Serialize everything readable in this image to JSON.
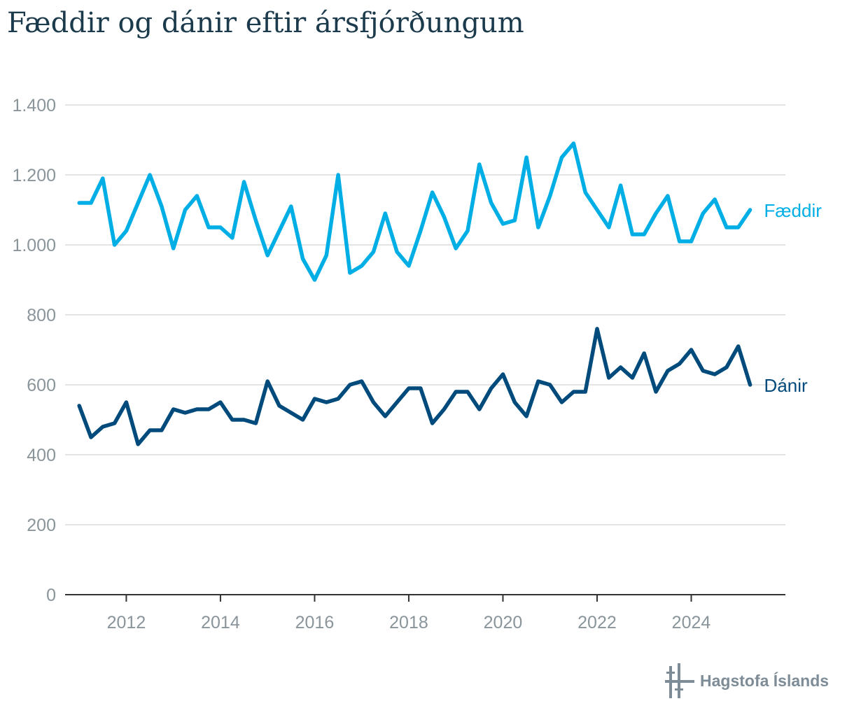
{
  "title": "Fæddir og dánir eftir ársfjórðungum",
  "brand": "Hagstofa Íslands",
  "colors": {
    "faeddir": "#00aee6",
    "danir": "#004b7c",
    "grid": "#dcdcdc",
    "tick": "#8a959b",
    "title": "#1b3a4b",
    "logo": "#7d8c96"
  },
  "chart_data": {
    "type": "line",
    "title": "Fæddir og dánir eftir ársfjórðungum",
    "x_start": 2011,
    "x_step": 0.25,
    "xticks": [
      "2012",
      "2014",
      "2016",
      "2018",
      "2020",
      "2022",
      "2024"
    ],
    "xtick_values": [
      2012,
      2014,
      2016,
      2018,
      2020,
      2022,
      2024
    ],
    "xlim": [
      2010.7,
      2026.0
    ],
    "ylim": [
      0,
      1400
    ],
    "yticks": [
      0,
      200,
      400,
      600,
      800,
      1000,
      1200,
      1400
    ],
    "ytick_labels": [
      "0",
      "200",
      "400",
      "600",
      "800",
      "1.000",
      "1.200",
      "1.400"
    ],
    "grid": true,
    "legend": "end-of-line labels",
    "series": [
      {
        "name": "Fæddir",
        "color": "#00aee6",
        "values": [
          1120,
          1120,
          1190,
          1000,
          1040,
          1120,
          1200,
          1110,
          990,
          1100,
          1140,
          1050,
          1050,
          1020,
          1180,
          1070,
          970,
          1040,
          1110,
          960,
          900,
          970,
          1200,
          920,
          940,
          980,
          1090,
          980,
          940,
          1040,
          1150,
          1080,
          990,
          1040,
          1230,
          1120,
          1060,
          1070,
          1250,
          1050,
          1140,
          1250,
          1290,
          1150,
          1100,
          1050,
          1170,
          1030,
          1030,
          1090,
          1140,
          1010,
          1010,
          1090,
          1130,
          1050,
          1050,
          1100
        ]
      },
      {
        "name": "Dánir",
        "color": "#004b7c",
        "values": [
          540,
          450,
          480,
          490,
          550,
          430,
          470,
          470,
          530,
          520,
          530,
          530,
          550,
          500,
          500,
          490,
          610,
          540,
          520,
          500,
          560,
          550,
          560,
          600,
          610,
          550,
          510,
          550,
          590,
          590,
          490,
          530,
          580,
          580,
          530,
          590,
          630,
          550,
          510,
          610,
          600,
          550,
          580,
          580,
          760,
          620,
          650,
          620,
          690,
          580,
          640,
          660,
          700,
          640,
          630,
          650,
          710,
          600
        ]
      }
    ]
  }
}
